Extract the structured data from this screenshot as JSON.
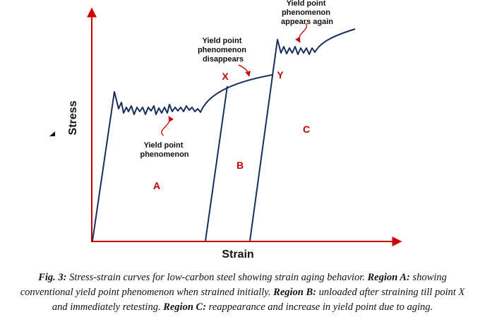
{
  "axes": {
    "x_label": "Strain",
    "y_label": "Stress",
    "color": "#cc0000"
  },
  "curve_color": "#1a2e5c",
  "annotations": {
    "yield_point": [
      "Yield point",
      "phenomenon"
    ],
    "disappears": [
      "Yield point",
      "phenomenon",
      "disappears"
    ],
    "appears_again": [
      "Yield point",
      "phenomenon",
      "appears again"
    ]
  },
  "points": {
    "x": "X",
    "y": "Y"
  },
  "regions": {
    "a": "A",
    "b": "B",
    "c": "C"
  },
  "region_color": "#c00000",
  "caption": {
    "fig": "Fig. 3:",
    "intro": " Stress-strain curves for low-carbon steel showing strain aging behavior. ",
    "a_label": "Region A:",
    "a_text": " showing conventional yield point phenomenon when strained initially. ",
    "b_label": "Region B:",
    "b_text": " unloaded after straining till point X and immediately retesting. ",
    "c_label": "Region C:",
    "c_text": " reappearance and increase in yield point due to aging."
  }
}
